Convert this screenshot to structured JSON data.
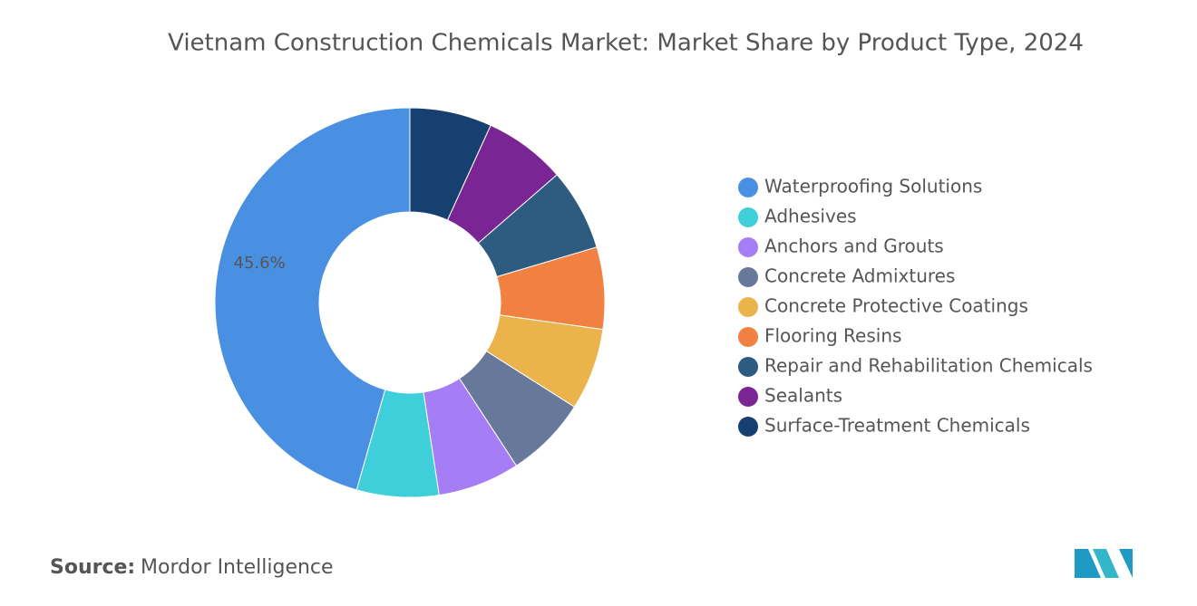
{
  "chart_data": {
    "type": "pie",
    "title": "Vietnam Construction Chemicals Market: Market Share by Product Type, 2024",
    "categories": [
      "Waterproofing Solutions",
      "Adhesives",
      "Anchors and Grouts",
      "Concrete Admixtures",
      "Concrete Protective Coatings",
      "Flooring Resins",
      "Repair and Rehabilitation Chemicals",
      "Sealants",
      "Surface-Treatment Chemicals"
    ],
    "values": [
      45.6,
      6.8,
      6.8,
      6.8,
      6.8,
      6.8,
      6.8,
      6.8,
      6.8
    ],
    "value_labels": [
      "45.6%",
      null,
      null,
      null,
      null,
      null,
      null,
      null,
      null
    ],
    "colors": [
      "#4a90e2",
      "#3fcfdb",
      "#a57df5",
      "#67789a",
      "#ebb34b",
      "#f08141",
      "#2e5c80",
      "#7a2594",
      "#16406f"
    ],
    "legend": "right",
    "source_label": "Source:",
    "source": "Mordor Intelligence"
  }
}
